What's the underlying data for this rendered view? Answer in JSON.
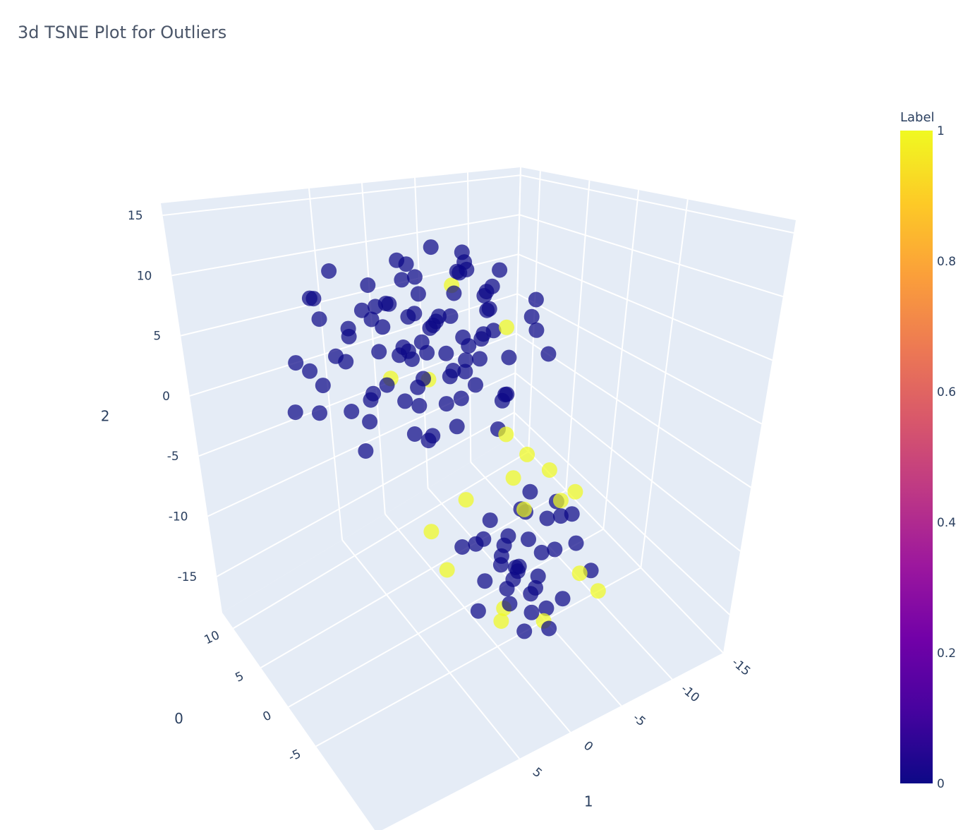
{
  "chart_data": {
    "type": "scatter3d",
    "title": "3d TSNE Plot for Outliers",
    "axes": {
      "x": {
        "title": "0",
        "ticks": [
          10,
          5,
          0,
          -5
        ],
        "range": [
          12,
          -16
        ]
      },
      "y": {
        "title": "1",
        "ticks": [
          -15,
          -10,
          -5,
          0,
          5
        ],
        "range": [
          -15,
          19
        ]
      },
      "z": {
        "title": "2",
        "ticks": [
          15,
          10,
          5,
          0,
          -5,
          -10,
          -15
        ],
        "range": [
          -18,
          16
        ]
      }
    },
    "colorbar": {
      "title": "Label",
      "ticks": [
        "0",
        "0.2",
        "0.4",
        "0.6",
        "0.8",
        "1"
      ],
      "range": [
        0,
        1
      ]
    },
    "colorscale": [
      "#0d0887",
      "#46039f",
      "#7201a8",
      "#9c179e",
      "#bd3786",
      "#d8576b",
      "#ed7953",
      "#fb9f3a",
      "#fdca26",
      "#f0f921"
    ],
    "pane_color": "#e5ecf6",
    "point_columns": [
      "x",
      "y",
      "z",
      "label"
    ],
    "points": [
      [
        8,
        -6,
        8,
        0
      ],
      [
        6,
        -4,
        10,
        0
      ],
      [
        4,
        -2,
        9,
        0
      ],
      [
        2,
        0,
        10,
        0
      ],
      [
        0,
        2,
        9,
        0
      ],
      [
        -2,
        4,
        8,
        0
      ],
      [
        10,
        -8,
        6,
        0
      ],
      [
        9,
        -2,
        7,
        0
      ],
      [
        7,
        1,
        8,
        0
      ],
      [
        5,
        4,
        7,
        0
      ],
      [
        3,
        6,
        8,
        0
      ],
      [
        1,
        8,
        7,
        0
      ],
      [
        -1,
        10,
        6,
        0
      ],
      [
        11,
        -4,
        4,
        0
      ],
      [
        9,
        2,
        5,
        0
      ],
      [
        7,
        5,
        6,
        0
      ],
      [
        5,
        8,
        5,
        0
      ],
      [
        3,
        10,
        4,
        0
      ],
      [
        10,
        -10,
        3,
        0
      ],
      [
        8,
        -8,
        4,
        0
      ],
      [
        6,
        -7,
        6,
        0
      ],
      [
        4,
        -5,
        5,
        0
      ],
      [
        2,
        -3,
        6,
        0
      ],
      [
        0,
        -1,
        5,
        0
      ],
      [
        -2,
        1,
        4,
        0
      ],
      [
        -4,
        3,
        3,
        0
      ],
      [
        12,
        0,
        2,
        0
      ],
      [
        10,
        4,
        3,
        0
      ],
      [
        8,
        7,
        2,
        0
      ],
      [
        6,
        10,
        1,
        0
      ],
      [
        4,
        12,
        0,
        0
      ],
      [
        11,
        -6,
        1,
        0
      ],
      [
        9,
        -4,
        2,
        0
      ],
      [
        7,
        -2,
        3,
        0
      ],
      [
        5,
        0,
        4,
        0
      ],
      [
        3,
        2,
        3,
        0
      ],
      [
        1,
        4,
        2,
        0
      ],
      [
        -1,
        6,
        1,
        0
      ],
      [
        -3,
        8,
        0,
        0
      ],
      [
        8,
        -9,
        0,
        0
      ],
      [
        6,
        -6,
        1,
        0
      ],
      [
        4,
        -3,
        2,
        0
      ],
      [
        2,
        -1,
        1,
        0
      ],
      [
        0,
        1,
        0,
        0
      ],
      [
        -2,
        3,
        -1,
        0
      ],
      [
        10,
        -1,
        -1,
        0
      ],
      [
        8,
        2,
        -2,
        0
      ],
      [
        6,
        5,
        -1,
        0
      ],
      [
        4,
        7,
        -2,
        0
      ],
      [
        2,
        9,
        -3,
        0
      ],
      [
        12,
        -5,
        -2,
        0
      ],
      [
        9,
        -7,
        -3,
        0
      ],
      [
        7,
        -4,
        -2,
        0
      ],
      [
        5,
        -2,
        -1,
        0
      ],
      [
        3,
        0,
        -2,
        0
      ],
      [
        1,
        3,
        -3,
        0
      ],
      [
        -1,
        5,
        -2,
        0
      ],
      [
        -3,
        -1,
        1,
        0
      ],
      [
        -4,
        -4,
        4,
        0
      ],
      [
        0,
        -6,
        7,
        0
      ],
      [
        2,
        -8,
        3,
        0
      ],
      [
        11,
        6,
        4,
        0
      ],
      [
        12,
        8,
        0,
        0
      ],
      [
        10,
        10,
        -3,
        0
      ],
      [
        9,
        8,
        7,
        0
      ],
      [
        7,
        10,
        8,
        0
      ],
      [
        5,
        12,
        3,
        0
      ],
      [
        3,
        4,
        11,
        0
      ],
      [
        6,
        -1,
        11,
        0
      ],
      [
        -3,
        -3,
        7,
        0
      ],
      [
        1,
        6,
        5,
        0
      ],
      [
        4,
        3,
        6,
        0
      ],
      [
        7,
        -5,
        1,
        0
      ],
      [
        5,
        -8,
        -1,
        0
      ],
      [
        3,
        -6,
        -3,
        0
      ],
      [
        1,
        -4,
        -2,
        0
      ],
      [
        -1,
        -2,
        -3,
        0
      ],
      [
        8,
        -1,
        4,
        0
      ],
      [
        6,
        1,
        1,
        0
      ],
      [
        4,
        3,
        3,
        0
      ],
      [
        2,
        5,
        0,
        0
      ],
      [
        11,
        -2,
        8,
        0
      ],
      [
        3,
        -5,
        9,
        0
      ],
      [
        5,
        6,
        9,
        0
      ],
      [
        9,
        5,
        -4,
        0
      ],
      [
        -2,
        7,
        3,
        0
      ],
      [
        0,
        10,
        2,
        0
      ],
      [
        6,
        -3,
        7,
        1
      ],
      [
        4,
        1,
        0,
        1
      ],
      [
        10,
        0,
        -3,
        1
      ],
      [
        2,
        -5,
        4,
        1
      ],
      [
        -2,
        -2,
        -3,
        1
      ],
      [
        7,
        8,
        10,
        0
      ],
      [
        -4,
        6,
        6,
        0
      ],
      [
        -2,
        -3,
        -7,
        1
      ],
      [
        -4,
        -5,
        -6,
        1
      ],
      [
        -6,
        -1,
        -7,
        1
      ],
      [
        -1,
        1,
        -8,
        1
      ],
      [
        -8,
        -3,
        -6,
        1
      ],
      [
        0,
        -6,
        -7,
        1
      ],
      [
        -5,
        -7,
        -8,
        1
      ],
      [
        -3,
        0,
        -9,
        0
      ],
      [
        -5,
        -2,
        -8,
        0
      ],
      [
        -7,
        -4,
        -8,
        0
      ],
      [
        -9,
        -2,
        -9,
        0
      ],
      [
        -4,
        -6,
        -9,
        0
      ],
      [
        -6,
        1,
        -10,
        0
      ],
      [
        -2,
        -4,
        -10,
        0
      ],
      [
        -8,
        -5,
        -10,
        0
      ],
      [
        -3,
        -2,
        -11,
        0
      ],
      [
        -5,
        -4,
        -12,
        0
      ],
      [
        -7,
        0,
        -11,
        0
      ],
      [
        -1,
        -1,
        -12,
        0
      ],
      [
        -9,
        -6,
        -12,
        0
      ],
      [
        -4,
        1,
        -13,
        0
      ],
      [
        -6,
        -3,
        -13,
        0
      ],
      [
        -2,
        -5,
        -13,
        0
      ],
      [
        -8,
        -1,
        -14,
        0
      ],
      [
        -3,
        -3,
        -14,
        0
      ],
      [
        -5,
        -1,
        -15,
        0
      ],
      [
        -1,
        -3,
        -15,
        0
      ],
      [
        -7,
        -5,
        -15,
        0
      ],
      [
        -4,
        -4,
        -16,
        0
      ],
      [
        -6,
        -2,
        -17,
        0
      ],
      [
        -2,
        0,
        -17,
        0
      ],
      [
        -5,
        -5,
        -17,
        0
      ],
      [
        -3,
        -2,
        -17,
        1
      ],
      [
        0,
        2,
        -14,
        1
      ],
      [
        1,
        3,
        -11,
        1
      ],
      [
        -10,
        -4,
        -11,
        1
      ],
      [
        -9,
        -7,
        -14,
        1
      ],
      [
        -4,
        -1,
        -17,
        1
      ],
      [
        -6,
        -4,
        -17,
        1
      ],
      [
        -5,
        0,
        -10,
        0
      ],
      [
        -3,
        -6,
        -11,
        0
      ],
      [
        -7,
        -2,
        -13,
        0
      ],
      [
        -1,
        -5,
        -16,
        0
      ],
      [
        -8,
        -3,
        -16,
        0
      ],
      [
        -2,
        2,
        -11,
        0
      ],
      [
        0,
        -1,
        -13,
        0
      ],
      [
        -6,
        -6,
        -9,
        0
      ],
      [
        -4,
        -2,
        -14,
        0
      ],
      [
        -3,
        -4,
        -8,
        0
      ],
      [
        -7,
        1,
        -12,
        0
      ]
    ]
  }
}
